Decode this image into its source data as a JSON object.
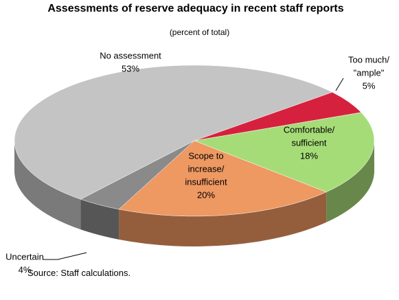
{
  "chart_data": {
    "type": "pie3d",
    "title": "Assessments of reserve adequacy in recent staff reports",
    "subtitle": "(percent of total)",
    "categories": [
      [
        "Too much/",
        "\"ample\""
      ],
      [
        "Comfortable/",
        "sufficient"
      ],
      [
        "Scope to",
        "increase/",
        "insufficient"
      ],
      [
        "Uncertain"
      ],
      [
        "No assessment"
      ]
    ],
    "values": [
      5,
      18,
      20,
      4,
      53
    ],
    "value_labels": [
      "5%",
      "18%",
      "20%",
      "4%",
      "53%"
    ],
    "colors": [
      "#d6213e",
      "#a6dc78",
      "#ee9862",
      "#8a8a8a",
      "#c4c4c4"
    ],
    "source": "Source: Staff calculations."
  }
}
